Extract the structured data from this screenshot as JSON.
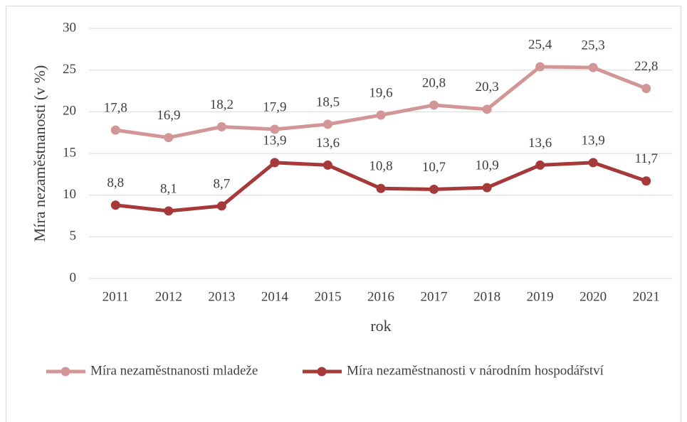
{
  "chart_data": {
    "type": "line",
    "y_label": "Míra nezaměstnanosti (v %)",
    "x_label": "rok",
    "categories": [
      "2011",
      "2012",
      "2013",
      "2014",
      "2015",
      "2016",
      "2017",
      "2018",
      "2019",
      "2020",
      "2021"
    ],
    "series": [
      {
        "name": "Míra nezaměstnanosti mladeže",
        "color": "#d39696",
        "values": [
          17.8,
          16.9,
          18.2,
          17.9,
          18.5,
          19.6,
          20.8,
          20.3,
          25.4,
          25.3,
          22.8
        ],
        "value_labels": [
          "17,8",
          "16,9",
          "18,2",
          "17,9",
          "18,5",
          "19,6",
          "20,8",
          "20,3",
          "25,4",
          "25,3",
          "22,8"
        ]
      },
      {
        "name": "Míra nezaměstnanosti v národním hospodářství",
        "color": "#a63a3a",
        "values": [
          8.8,
          8.1,
          8.7,
          13.9,
          13.6,
          10.8,
          10.7,
          10.9,
          13.6,
          13.9,
          11.7
        ],
        "value_labels": [
          "8,8",
          "8,1",
          "8,7",
          "13,9",
          "13,6",
          "10,8",
          "10,7",
          "10,9",
          "13,6",
          "13,9",
          "11,7"
        ]
      }
    ],
    "ylim": [
      0,
      30
    ],
    "yticks": [
      0,
      5,
      10,
      15,
      20,
      25,
      30
    ],
    "grid": true,
    "legend": "bottom"
  }
}
